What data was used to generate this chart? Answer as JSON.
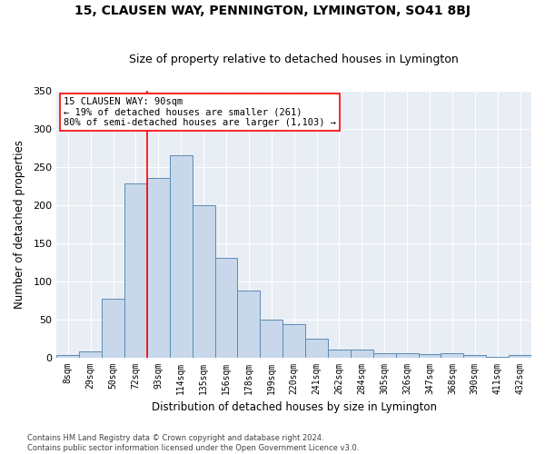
{
  "title": "15, CLAUSEN WAY, PENNINGTON, LYMINGTON, SO41 8BJ",
  "subtitle": "Size of property relative to detached houses in Lymington",
  "xlabel": "Distribution of detached houses by size in Lymington",
  "ylabel": "Number of detached properties",
  "bar_color": "#c8d8ea",
  "bar_edge_color": "#5a8ab5",
  "background_color": "#e8eef4",
  "annotation_text": "15 CLAUSEN WAY: 90sqm\n← 19% of detached houses are smaller (261)\n80% of semi-detached houses are larger (1,103) →",
  "categories": [
    "8sqm",
    "29sqm",
    "50sqm",
    "72sqm",
    "93sqm",
    "114sqm",
    "135sqm",
    "156sqm",
    "178sqm",
    "199sqm",
    "220sqm",
    "241sqm",
    "262sqm",
    "284sqm",
    "305sqm",
    "326sqm",
    "347sqm",
    "368sqm",
    "390sqm",
    "411sqm",
    "432sqm"
  ],
  "values": [
    3,
    8,
    77,
    228,
    235,
    265,
    200,
    130,
    88,
    50,
    44,
    25,
    10,
    10,
    6,
    6,
    4,
    5,
    3,
    1,
    3
  ],
  "ylim": [
    0,
    350
  ],
  "yticks": [
    0,
    50,
    100,
    150,
    200,
    250,
    300,
    350
  ],
  "vline_index": 3.5,
  "footer": "Contains HM Land Registry data © Crown copyright and database right 2024.\nContains public sector information licensed under the Open Government Licence v3.0."
}
